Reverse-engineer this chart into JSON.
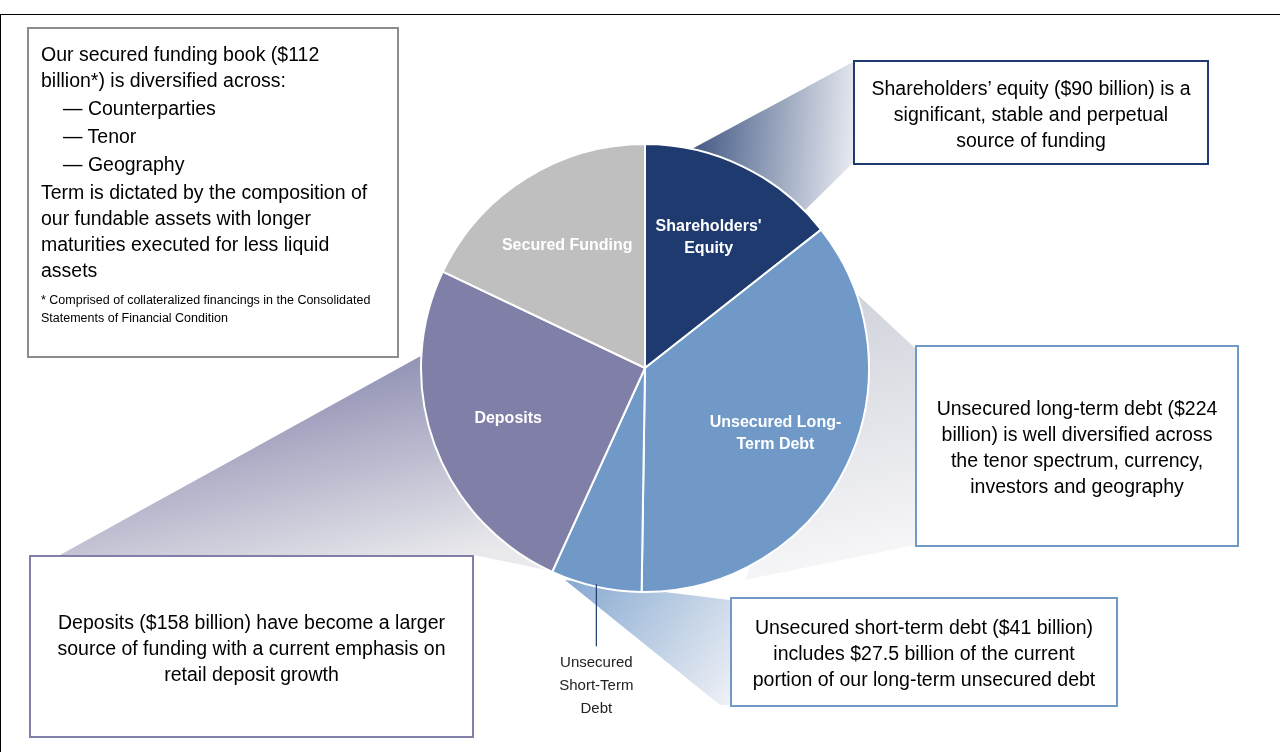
{
  "chart_data": {
    "type": "pie",
    "categories": [
      "Shareholders' Equity",
      "Unsecured Long-Term Debt",
      "Unsecured Short-Term Debt",
      "Deposits",
      "Secured Funding"
    ],
    "values": [
      14.4,
      35.84,
      6.56,
      25.28,
      17.92
    ],
    "colors": [
      "#1f3a6e",
      "#7099c8",
      "#7099c8",
      "#7f7fa8",
      "#bfbfbf"
    ],
    "annotations": [
      "Our secured funding book ($112 billion*) is diversified across:",
      "— Counterparties",
      "— Tenor",
      "— Geography",
      "Term is dictated by the composition of our fundable assets with longer maturities executed for less liquid assets",
      "* Comprised of collateralized financings in the Consolidated Statements of Financial Condition",
      "Shareholders’ equity ($90 billion) is a significant, stable and perpetual source of funding",
      "Unsecured long-term debt ($224 billion) is well diversified across the tenor spectrum, currency, investors and geography",
      "Unsecured short-term debt ($41 billion) includes $27.5 billion of the current portion of our long-term unsecured debt",
      "Deposits ($158 billion) have become a larger source of funding with a current emphasis on retail deposit growth"
    ]
  }
}
